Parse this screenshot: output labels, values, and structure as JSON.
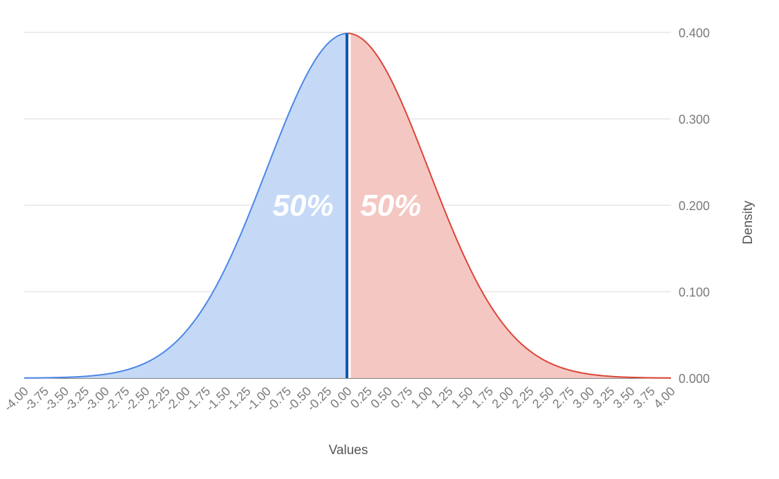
{
  "chart_data": {
    "type": "area",
    "title": "",
    "xlabel": "Values",
    "ylabel": "Density",
    "xlim": [
      -4,
      4
    ],
    "ylim": [
      0,
      0.4
    ],
    "grid": true,
    "x_ticks": [
      "-4.00",
      "-3.75",
      "-3.50",
      "-3.25",
      "-3.00",
      "-2.75",
      "-2.50",
      "-2.25",
      "-2.00",
      "-1.75",
      "-1.50",
      "-1.25",
      "-1.00",
      "-0.75",
      "-0.50",
      "-0.25",
      "0.00",
      "0.25",
      "0.50",
      "0.75",
      "1.00",
      "1.25",
      "1.50",
      "1.75",
      "2.00",
      "2.25",
      "2.50",
      "2.75",
      "3.00",
      "3.25",
      "3.50",
      "3.75",
      "4.00"
    ],
    "y_ticks": [
      "0.000",
      "0.100",
      "0.200",
      "0.300",
      "0.400"
    ],
    "series": [
      {
        "color": "#4a86e8",
        "fill": "#c5d9f7",
        "x": [
          -4.0,
          -3.75,
          -3.5,
          -3.25,
          -3.0,
          -2.75,
          -2.5,
          -2.25,
          -2.0,
          -1.75,
          -1.5,
          -1.25,
          -1.0,
          -0.75,
          -0.5,
          -0.25,
          0.0
        ],
        "y": [
          0.0001,
          0.0004,
          0.0009,
          0.002,
          0.0044,
          0.0091,
          0.0175,
          0.0317,
          0.054,
          0.0863,
          0.1295,
          0.1826,
          0.242,
          0.3011,
          0.3521,
          0.3867,
          0.3989
        ]
      },
      {
        "color": "#db4437",
        "fill": "#f4c7c3",
        "x": [
          0.0,
          0.25,
          0.5,
          0.75,
          1.0,
          1.25,
          1.5,
          1.75,
          2.0,
          2.25,
          2.5,
          2.75,
          3.0,
          3.25,
          3.5,
          3.75,
          4.0
        ],
        "y": [
          0.3989,
          0.3867,
          0.3521,
          0.3011,
          0.242,
          0.1826,
          0.1295,
          0.0863,
          0.054,
          0.0317,
          0.0175,
          0.0091,
          0.0044,
          0.002,
          0.0009,
          0.0004,
          0.0001
        ]
      }
    ],
    "divider": {
      "x": 0.0,
      "color": "#0b5cad"
    },
    "annotations": [
      {
        "text": "50%",
        "x": -0.5,
        "y": 0.2
      },
      {
        "text": "50%",
        "x": 0.5,
        "y": 0.2
      }
    ]
  }
}
